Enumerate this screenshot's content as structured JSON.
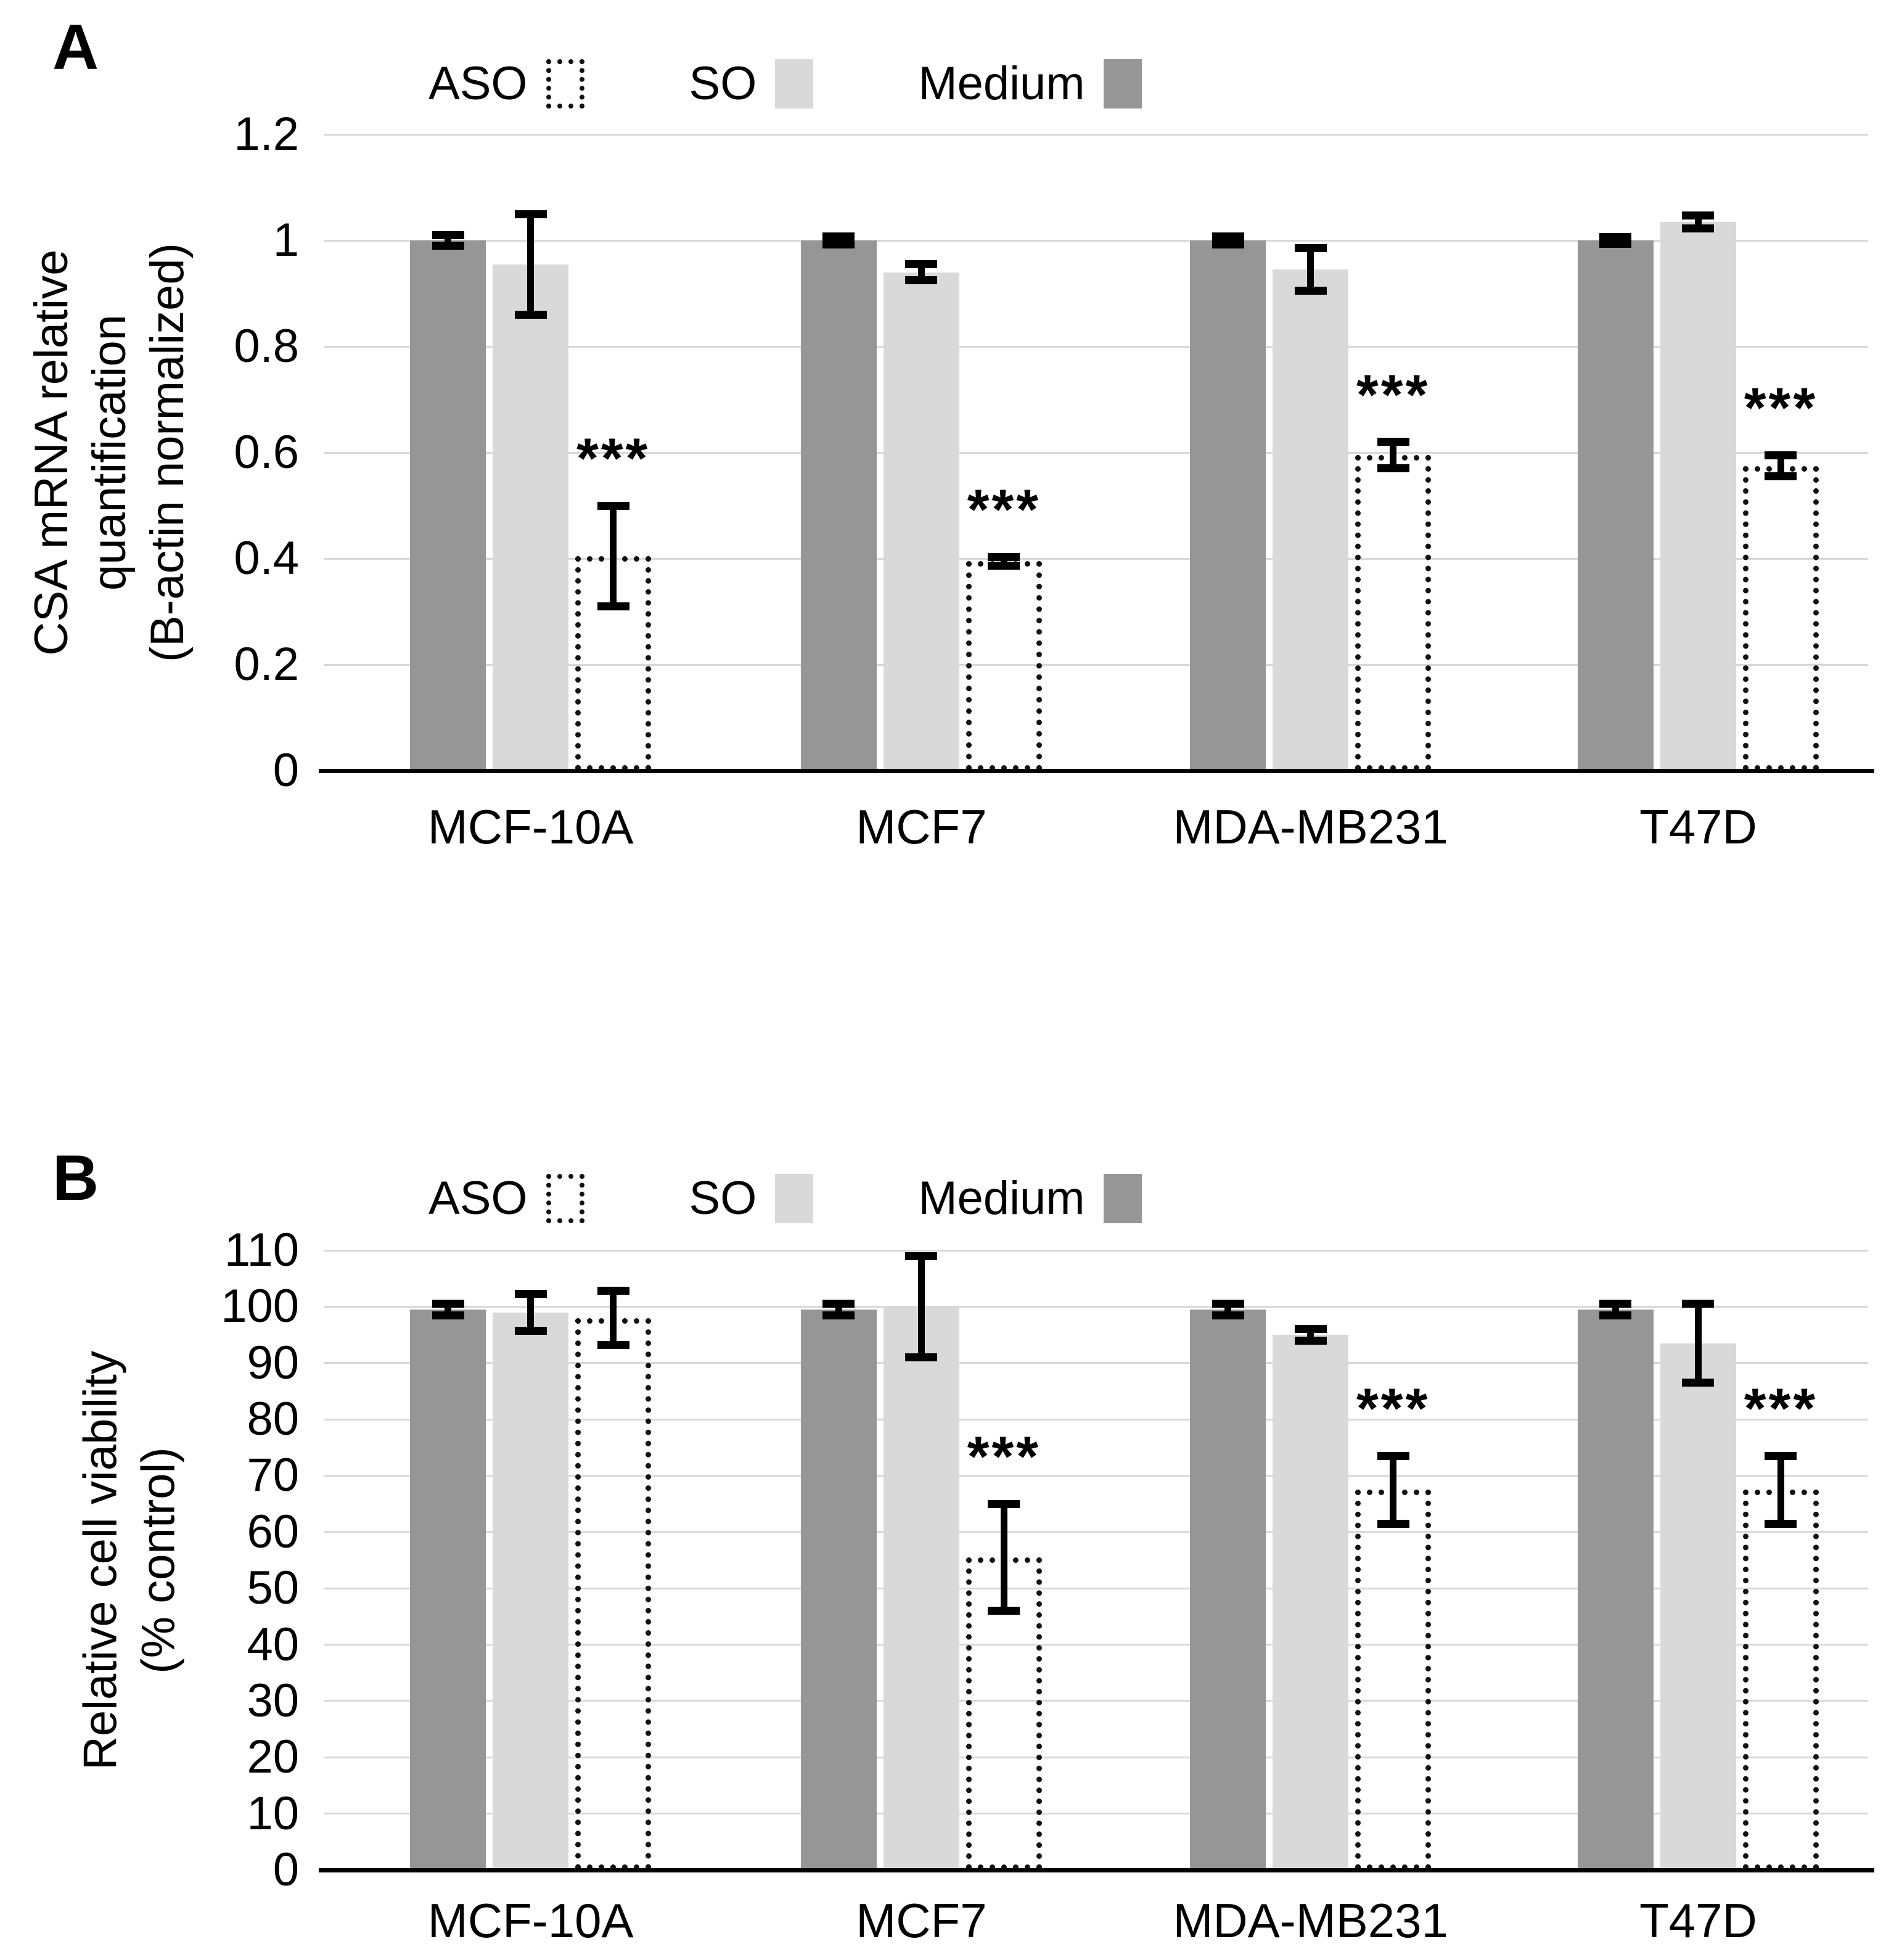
{
  "figure": {
    "background": "#ffffff",
    "panels": [
      {
        "letter": "A",
        "legend": [
          {
            "label": "ASO",
            "swatch": "dotted"
          },
          {
            "label": "SO",
            "swatch": "light"
          },
          {
            "label": "Medium",
            "swatch": "dark"
          }
        ]
      },
      {
        "letter": "B",
        "legend": [
          {
            "label": "ASO",
            "swatch": "dotted"
          },
          {
            "label": "SO",
            "swatch": "light"
          },
          {
            "label": "Medium",
            "swatch": "dark"
          }
        ]
      }
    ]
  },
  "colors": {
    "medium_fill": "#969696",
    "so_fill": "#d9d9d9",
    "aso_border": "#111111",
    "gridline": "#d9d9d9",
    "axis": "#000000",
    "error_bar": "#000000"
  },
  "chart_data": [
    {
      "type": "bar",
      "panel": "A",
      "ylabel_lines": [
        "CSA mRNA relative",
        "quantification",
        "(B-actin normalized)"
      ],
      "ylim": [
        0,
        1.2
      ],
      "yticks": [
        1.2,
        1,
        0.8,
        0.6,
        0.4,
        0.2,
        0
      ],
      "ytick_labels": [
        "1.2",
        "1",
        "0.8",
        "0.6",
        "0.4",
        "0.2",
        "0"
      ],
      "grid": true,
      "legend_position": "top",
      "categories": [
        "MCF-10A",
        "MCF7",
        "MDA-MB231",
        "T47D"
      ],
      "series": [
        {
          "name": "Medium",
          "values": [
            1.0,
            1.0,
            1.0,
            1.0
          ],
          "errors": [
            0.01,
            0.008,
            0.008,
            0.006
          ]
        },
        {
          "name": "SO",
          "values": [
            0.955,
            0.94,
            0.945,
            1.035
          ],
          "errors": [
            0.095,
            0.015,
            0.04,
            0.012
          ]
        },
        {
          "name": "ASO",
          "values": [
            0.405,
            0.395,
            0.595,
            0.575
          ],
          "errors": [
            0.095,
            0.008,
            0.025,
            0.02
          ]
        }
      ],
      "significance": {
        "series": "ASO",
        "labels": [
          "***",
          "***",
          "***",
          "***"
        ]
      }
    },
    {
      "type": "bar",
      "panel": "B",
      "ylabel_lines": [
        "Relative cell viability",
        "(% control)"
      ],
      "ylim": [
        0,
        110
      ],
      "yticks": [
        110,
        100,
        90,
        80,
        70,
        60,
        50,
        40,
        30,
        20,
        10,
        0
      ],
      "ytick_labels": [
        "110",
        "100",
        "90",
        "80",
        "70",
        "60",
        "50",
        "40",
        "30",
        "20",
        "10",
        "0"
      ],
      "grid": true,
      "legend_position": "top",
      "categories": [
        "MCF-10A",
        "MCF7",
        "MDA-MB231",
        "T47D"
      ],
      "series": [
        {
          "name": "Medium",
          "values": [
            99.5,
            99.5,
            99.5,
            99.5
          ],
          "errors": [
            1,
            1,
            1,
            1
          ]
        },
        {
          "name": "SO",
          "values": [
            99,
            100,
            95,
            93.5
          ],
          "errors": [
            3.3,
            9,
            1,
            7
          ]
        },
        {
          "name": "ASO",
          "values": [
            98,
            55.5,
            67.5,
            67.5
          ],
          "errors": [
            4.8,
            9.5,
            6,
            6
          ]
        }
      ],
      "significance": {
        "series": "ASO",
        "labels": [
          null,
          "***",
          "***",
          "***"
        ]
      }
    }
  ]
}
